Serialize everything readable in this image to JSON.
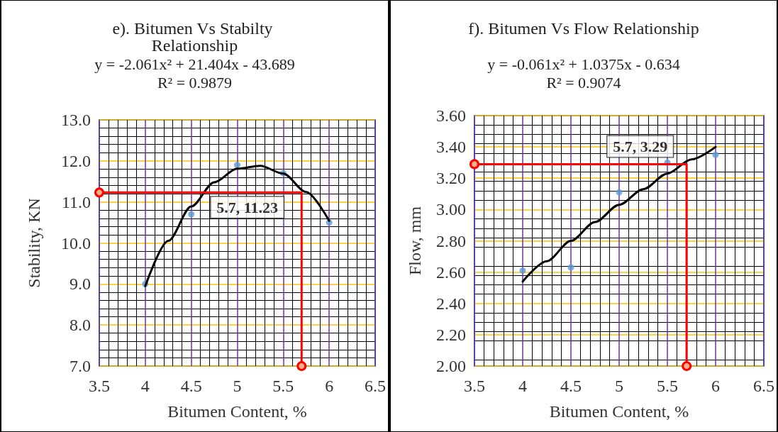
{
  "chart_data": [
    {
      "type": "scatter",
      "title": "e). Bitumen Vs Stabilty Relationship",
      "xlabel": "Bitumen Content, %",
      "ylabel": "Stability, KN",
      "xlim": [
        3.5,
        6.5
      ],
      "xticks": [
        3.5,
        4,
        4.5,
        5,
        5.5,
        6,
        6.5
      ],
      "ylim": [
        7,
        13
      ],
      "yticks": [
        {
          "value": 7,
          "label": "7.0"
        },
        {
          "value": 8,
          "label": "8.0"
        },
        {
          "value": 9,
          "label": "9.0"
        },
        {
          "value": 10,
          "label": "10.0"
        },
        {
          "value": 11,
          "label": "11.0"
        },
        {
          "value": 12,
          "label": "12.0"
        },
        {
          "value": 13,
          "label": "13.0"
        }
      ],
      "grid": true,
      "annotations": [
        "y = -2.061x² + 21.404x - 43.689",
        "R² = 0.9879",
        {
          "text": "5.7, 11.23",
          "x": 5.7,
          "y": 11.23
        }
      ],
      "series": [
        {
          "color": "#5b9bd5",
          "marker": "circle",
          "x": [
            4,
            4.5,
            5,
            5.5,
            6
          ],
          "values": [
            9.0,
            10.7,
            11.9,
            11.7,
            10.5
          ]
        },
        {
          "type": "line",
          "color": "#000000",
          "marker": "none",
          "line_style": "solid",
          "x": [
            4,
            4.25,
            4.5,
            4.75,
            5,
            5.25,
            5.5,
            5.75,
            6
          ],
          "values": [
            8.95,
            10.05,
            10.89,
            11.48,
            11.81,
            11.88,
            11.69,
            11.24,
            10.54
          ]
        },
        {
          "type": "line",
          "color": "#ff0000",
          "marker": "circle",
          "line_style": "solid",
          "x": [
            3.5,
            5.7,
            5.7
          ],
          "values": [
            11.23,
            11.23,
            7.0
          ]
        }
      ]
    },
    {
      "type": "scatter",
      "title": "f). Bitumen Vs Flow Relationship",
      "xlabel": "Bitumen Content, %",
      "ylabel": "Flow, mm",
      "xlim": [
        3.5,
        6.5
      ],
      "xticks": [
        3.5,
        4,
        4.5,
        5,
        5.5,
        6,
        6.5
      ],
      "ylim": [
        2,
        3.6
      ],
      "yticks": [
        {
          "value": 2,
          "label": "2.00"
        },
        {
          "value": 2.2,
          "label": "2.20"
        },
        {
          "value": 2.4,
          "label": "2.40"
        },
        {
          "value": 2.6,
          "label": "2.60"
        },
        {
          "value": 2.8,
          "label": "2.80"
        },
        {
          "value": 3,
          "label": "3.00"
        },
        {
          "value": 3.2,
          "label": "3.20"
        },
        {
          "value": 3.4,
          "label": "3.40"
        },
        {
          "value": 3.6,
          "label": "3.60"
        }
      ],
      "grid": true,
      "annotations": [
        "y = -0.061x² + 1.0375x - 0.634",
        "R² = 0.9074",
        {
          "text": "5.7, 3.29",
          "x": 5.7,
          "y": 3.29
        }
      ],
      "series": [
        {
          "color": "#5b9bd5",
          "marker": "circle",
          "x": [
            4,
            4.5,
            5,
            5.5,
            6
          ],
          "values": [
            2.61,
            2.63,
            3.11,
            3.3,
            3.35
          ]
        },
        {
          "type": "line",
          "color": "#000000",
          "marker": "none",
          "line_style": "solid",
          "x": [
            4,
            4.25,
            4.5,
            4.75,
            5,
            5.25,
            5.5,
            5.75,
            6
          ],
          "values": [
            2.54,
            2.67,
            2.8,
            2.92,
            3.03,
            3.13,
            3.23,
            3.32,
            3.4
          ]
        },
        {
          "type": "line",
          "color": "#ff0000",
          "marker": "circle",
          "line_style": "solid",
          "x": [
            3.5,
            5.7,
            5.7
          ],
          "values": [
            3.29,
            3.29,
            2.0
          ]
        }
      ]
    }
  ]
}
